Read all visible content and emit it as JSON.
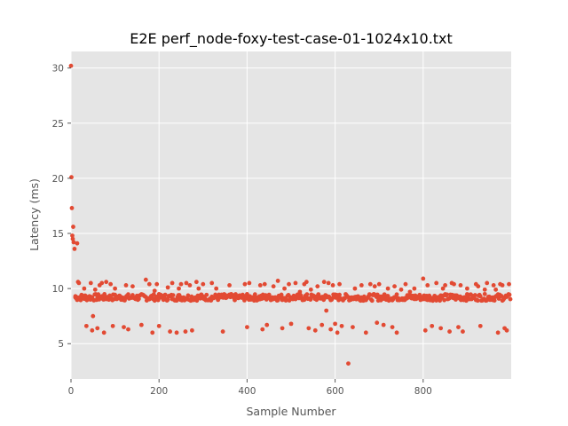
{
  "chart_data": {
    "type": "scatter",
    "title": "E2E perf_node-foxy-test-case-01-1024x10.txt",
    "xlabel": "Sample Number",
    "ylabel": "Latency (ms)",
    "xlim": [
      0,
      1000
    ],
    "ylim": [
      1.8,
      31.5
    ],
    "xticks": [
      0,
      200,
      400,
      600,
      800
    ],
    "yticks": [
      5,
      10,
      15,
      20,
      25,
      30
    ],
    "grid": true,
    "legend": "none",
    "marker_color": "#E24A33",
    "background_color": "#E5E5E5",
    "series": [
      {
        "points": [
          [
            0,
            30.2
          ],
          [
            1,
            20.1
          ],
          [
            2,
            17.3
          ],
          [
            3,
            14.8
          ],
          [
            4,
            14.5
          ],
          [
            5,
            15.6
          ],
          [
            6,
            14.2
          ],
          [
            8,
            13.6
          ],
          [
            10,
            9.3
          ],
          [
            12,
            9.1
          ],
          [
            14,
            14.1
          ],
          [
            16,
            10.6
          ],
          [
            18,
            10.5
          ],
          [
            20,
            9.2
          ],
          [
            30,
            10.0
          ],
          [
            35,
            6.6
          ],
          [
            45,
            10.5
          ],
          [
            48,
            6.2
          ],
          [
            50,
            7.5
          ],
          [
            55,
            9.9
          ],
          [
            60,
            6.4
          ],
          [
            65,
            10.3
          ],
          [
            70,
            10.5
          ],
          [
            75,
            6.0
          ],
          [
            80,
            10.6
          ],
          [
            90,
            10.4
          ],
          [
            95,
            6.6
          ],
          [
            100,
            10.0
          ],
          [
            120,
            6.5
          ],
          [
            125,
            10.3
          ],
          [
            130,
            6.3
          ],
          [
            140,
            10.2
          ],
          [
            160,
            6.7
          ],
          [
            170,
            10.8
          ],
          [
            178,
            10.4
          ],
          [
            185,
            6.0
          ],
          [
            190,
            9.8
          ],
          [
            195,
            10.4
          ],
          [
            200,
            6.6
          ],
          [
            220,
            10.1
          ],
          [
            225,
            6.1
          ],
          [
            230,
            10.5
          ],
          [
            240,
            6.0
          ],
          [
            245,
            10.0
          ],
          [
            250,
            10.4
          ],
          [
            260,
            6.1
          ],
          [
            262,
            10.5
          ],
          [
            270,
            10.3
          ],
          [
            275,
            6.2
          ],
          [
            285,
            10.6
          ],
          [
            290,
            10.0
          ],
          [
            300,
            10.4
          ],
          [
            320,
            10.5
          ],
          [
            330,
            10.0
          ],
          [
            345,
            6.1
          ],
          [
            360,
            10.3
          ],
          [
            395,
            10.4
          ],
          [
            400,
            6.5
          ],
          [
            405,
            10.5
          ],
          [
            430,
            10.3
          ],
          [
            435,
            6.3
          ],
          [
            440,
            10.4
          ],
          [
            445,
            6.7
          ],
          [
            460,
            10.2
          ],
          [
            470,
            10.7
          ],
          [
            480,
            6.4
          ],
          [
            485,
            10.0
          ],
          [
            495,
            10.4
          ],
          [
            500,
            6.8
          ],
          [
            510,
            10.5
          ],
          [
            520,
            9.7
          ],
          [
            530,
            10.4
          ],
          [
            535,
            10.6
          ],
          [
            540,
            6.4
          ],
          [
            545,
            9.9
          ],
          [
            555,
            6.2
          ],
          [
            560,
            10.2
          ],
          [
            570,
            6.7
          ],
          [
            575,
            10.6
          ],
          [
            580,
            8.0
          ],
          [
            585,
            10.5
          ],
          [
            590,
            6.3
          ],
          [
            595,
            10.3
          ],
          [
            600,
            6.8
          ],
          [
            605,
            6.0
          ],
          [
            610,
            10.4
          ],
          [
            615,
            6.6
          ],
          [
            630,
            3.2
          ],
          [
            640,
            6.5
          ],
          [
            645,
            10.0
          ],
          [
            660,
            10.3
          ],
          [
            670,
            6.0
          ],
          [
            680,
            10.4
          ],
          [
            690,
            10.2
          ],
          [
            695,
            6.9
          ],
          [
            700,
            10.4
          ],
          [
            710,
            6.7
          ],
          [
            720,
            10.0
          ],
          [
            730,
            6.5
          ],
          [
            735,
            10.2
          ],
          [
            740,
            6.0
          ],
          [
            750,
            9.9
          ],
          [
            760,
            10.4
          ],
          [
            770,
            9.7
          ],
          [
            780,
            10.0
          ],
          [
            800,
            10.9
          ],
          [
            805,
            6.2
          ],
          [
            810,
            10.3
          ],
          [
            820,
            6.6
          ],
          [
            830,
            10.5
          ],
          [
            840,
            6.4
          ],
          [
            845,
            10.0
          ],
          [
            850,
            10.3
          ],
          [
            860,
            6.1
          ],
          [
            865,
            10.5
          ],
          [
            870,
            10.4
          ],
          [
            880,
            6.5
          ],
          [
            885,
            10.3
          ],
          [
            890,
            6.1
          ],
          [
            900,
            10.0
          ],
          [
            920,
            10.4
          ],
          [
            925,
            10.2
          ],
          [
            930,
            6.6
          ],
          [
            940,
            9.9
          ],
          [
            945,
            10.5
          ],
          [
            960,
            10.3
          ],
          [
            965,
            9.9
          ],
          [
            970,
            6.0
          ],
          [
            975,
            10.4
          ],
          [
            980,
            10.3
          ],
          [
            985,
            6.4
          ],
          [
            990,
            6.2
          ],
          [
            995,
            10.4
          ]
        ]
      }
    ],
    "baseline_band": {
      "x_from": 10,
      "x_to": 999,
      "step": 2,
      "center": 9.2,
      "spread": 0.3
    }
  }
}
